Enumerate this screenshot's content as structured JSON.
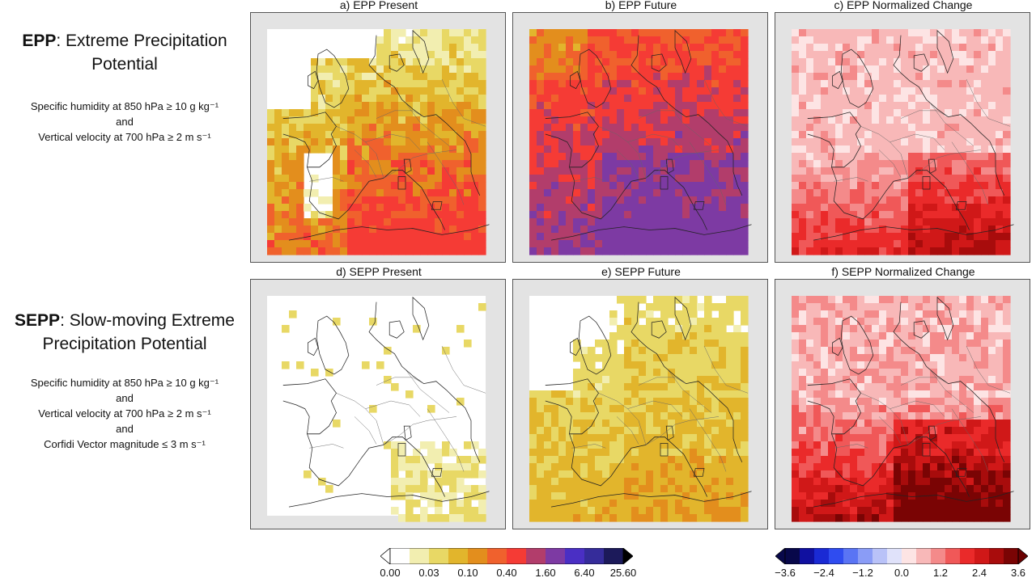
{
  "left_text": {
    "epp_abbr": "EPP",
    "epp_rest": ": Extreme Precipitation Potential",
    "epp_criteria": [
      "Specific humidity at 850 hPa ≥ 10 g kg⁻¹",
      "and",
      "Vertical velocity at 700 hPa ≥ 2 m s⁻¹"
    ],
    "sepp_abbr": "SEPP",
    "sepp_rest": ": Slow-moving Extreme Precipitation Potential",
    "sepp_criteria": [
      "Specific humidity at 850 hPa ≥ 10 g kg⁻¹",
      "and",
      "Vertical velocity at 700 hPa ≥ 2 m s⁻¹",
      "and",
      "Corfidi Vector magnitude ≤ 3 m s⁻¹"
    ]
  },
  "panels": [
    {
      "title": "a) EPP Present",
      "style": "present"
    },
    {
      "title": "b) EPP Future",
      "style": "future"
    },
    {
      "title": "c) EPP Normalized Change",
      "style": "change"
    },
    {
      "title": "d) SEPP Present",
      "style": "s_present"
    },
    {
      "title": "e) SEPP Future",
      "style": "s_future"
    },
    {
      "title": "f) SEPP Normalized Change",
      "style": "s_change"
    }
  ],
  "colorbar_frequency": {
    "colors": [
      "#ffffff",
      "#f2eeb0",
      "#e8d865",
      "#e2b52c",
      "#e38e1d",
      "#f0612d",
      "#f53b35",
      "#b23d6b",
      "#7d3aa3",
      "#4a2fc4",
      "#352c9a",
      "#1c1a5a"
    ],
    "ticks": [
      "0.00",
      "0.03",
      "0.10",
      "0.40",
      "1.60",
      "6.40",
      "25.60"
    ]
  },
  "colorbar_change": {
    "colors": [
      "#08084a",
      "#1010a0",
      "#1a2ad4",
      "#2f4cf0",
      "#5a74f4",
      "#8a9cf6",
      "#b9c2f8",
      "#e0e2fa",
      "#fde4e4",
      "#f8b8b8",
      "#f48a8a",
      "#f05858",
      "#ea2a2a",
      "#d01818",
      "#a80c0c",
      "#7a0404"
    ],
    "ticks": [
      "−3.6",
      "−2.4",
      "−1.2",
      "0.0",
      "1.2",
      "2.4",
      "3.6"
    ]
  }
}
